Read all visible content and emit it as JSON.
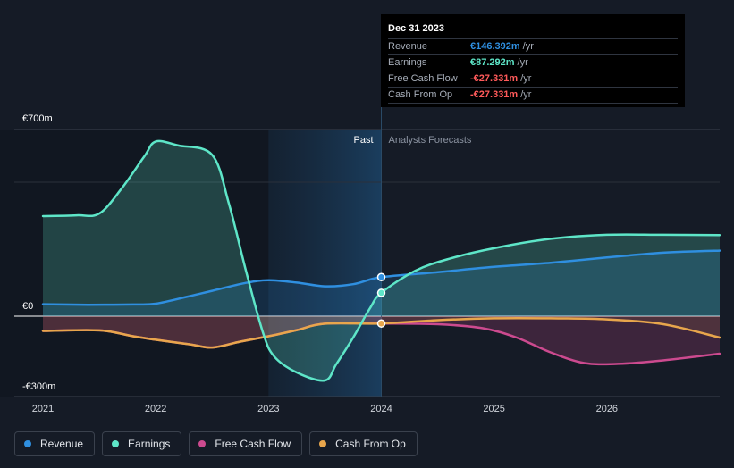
{
  "chart_data": {
    "type": "area",
    "currency_unit": "€m",
    "x_ticks": [
      2021,
      2022,
      2023,
      2024,
      2025,
      2026
    ],
    "y_ticks": [
      {
        "value": 700,
        "label": "€700m"
      },
      {
        "value": 0,
        "label": "€0"
      },
      {
        "value": -300,
        "label": "-€300m"
      }
    ],
    "ylim": [
      -300,
      700
    ],
    "xlim": [
      2021.0,
      2027.0
    ],
    "past_label": "Past",
    "forecast_label": "Analysts Forecasts",
    "highlight_start": 2023.0,
    "divider_x": 2024.0,
    "series": [
      {
        "name": "Revenue",
        "color": "#2f8fe0",
        "points": [
          [
            2021.0,
            45
          ],
          [
            2021.4,
            43
          ],
          [
            2021.8,
            44
          ],
          [
            2022.0,
            47
          ],
          [
            2022.3,
            75
          ],
          [
            2022.5,
            95
          ],
          [
            2022.8,
            125
          ],
          [
            2023.0,
            135
          ],
          [
            2023.25,
            126
          ],
          [
            2023.5,
            112
          ],
          [
            2023.75,
            120
          ],
          [
            2024.0,
            146.392
          ],
          [
            2024.5,
            165
          ],
          [
            2025.0,
            185
          ],
          [
            2025.5,
            200
          ],
          [
            2026.0,
            220
          ],
          [
            2026.5,
            238
          ],
          [
            2027.0,
            246
          ]
        ]
      },
      {
        "name": "Earnings",
        "color": "#5ee6c8",
        "points": [
          [
            2021.0,
            375
          ],
          [
            2021.3,
            378
          ],
          [
            2021.5,
            385
          ],
          [
            2021.7,
            480
          ],
          [
            2021.9,
            600
          ],
          [
            2022.0,
            655
          ],
          [
            2022.2,
            640
          ],
          [
            2022.5,
            605
          ],
          [
            2022.65,
            420
          ],
          [
            2022.8,
            170
          ],
          [
            2022.95,
            -60
          ],
          [
            2023.05,
            -150
          ],
          [
            2023.25,
            -210
          ],
          [
            2023.5,
            -240
          ],
          [
            2023.6,
            -180
          ],
          [
            2023.75,
            -80
          ],
          [
            2023.9,
            30
          ],
          [
            2024.0,
            87.292
          ],
          [
            2024.3,
            170
          ],
          [
            2024.6,
            215
          ],
          [
            2025.0,
            255
          ],
          [
            2025.5,
            290
          ],
          [
            2026.0,
            305
          ],
          [
            2026.5,
            305
          ],
          [
            2027.0,
            304
          ]
        ]
      },
      {
        "name": "Free Cash Flow",
        "color": "#cc4a8f",
        "points": [
          [
            2021.0,
            -55
          ],
          [
            2021.5,
            -53
          ],
          [
            2021.8,
            -75
          ],
          [
            2022.0,
            -88
          ],
          [
            2022.3,
            -105
          ],
          [
            2022.5,
            -117
          ],
          [
            2022.75,
            -95
          ],
          [
            2023.0,
            -75
          ],
          [
            2023.25,
            -52
          ],
          [
            2023.5,
            -28
          ],
          [
            2024.0,
            -27.331
          ],
          [
            2024.5,
            -30
          ],
          [
            2024.9,
            -45
          ],
          [
            2025.2,
            -80
          ],
          [
            2025.5,
            -135
          ],
          [
            2025.8,
            -175
          ],
          [
            2026.1,
            -178
          ],
          [
            2026.5,
            -165
          ],
          [
            2027.0,
            -140
          ]
        ]
      },
      {
        "name": "Cash From Op",
        "color": "#e8a64c",
        "points": [
          [
            2021.0,
            -55
          ],
          [
            2021.5,
            -53
          ],
          [
            2021.8,
            -75
          ],
          [
            2022.0,
            -88
          ],
          [
            2022.3,
            -105
          ],
          [
            2022.5,
            -117
          ],
          [
            2022.75,
            -95
          ],
          [
            2023.0,
            -75
          ],
          [
            2023.25,
            -52
          ],
          [
            2023.5,
            -28
          ],
          [
            2024.0,
            -27.331
          ],
          [
            2024.5,
            -15
          ],
          [
            2025.0,
            -8
          ],
          [
            2025.5,
            -8
          ],
          [
            2026.0,
            -12
          ],
          [
            2026.5,
            -30
          ],
          [
            2027.0,
            -80
          ]
        ]
      }
    ]
  },
  "tooltip": {
    "date": "Dec 31 2023",
    "rows": [
      {
        "name": "Revenue",
        "value": "€146.392m",
        "unit": "/yr",
        "color": "#2f8fe0"
      },
      {
        "name": "Earnings",
        "value": "€87.292m",
        "unit": "/yr",
        "color": "#5ee6c8"
      },
      {
        "name": "Free Cash Flow",
        "value": "-€27.331m",
        "unit": "/yr",
        "color": "#ff5a5a"
      },
      {
        "name": "Cash From Op",
        "value": "-€27.331m",
        "unit": "/yr",
        "color": "#ff5a5a"
      }
    ]
  },
  "legend": [
    {
      "label": "Revenue",
      "color": "#2f8fe0"
    },
    {
      "label": "Earnings",
      "color": "#5ee6c8"
    },
    {
      "label": "Free Cash Flow",
      "color": "#cc4a8f"
    },
    {
      "label": "Cash From Op",
      "color": "#e8a64c"
    }
  ]
}
